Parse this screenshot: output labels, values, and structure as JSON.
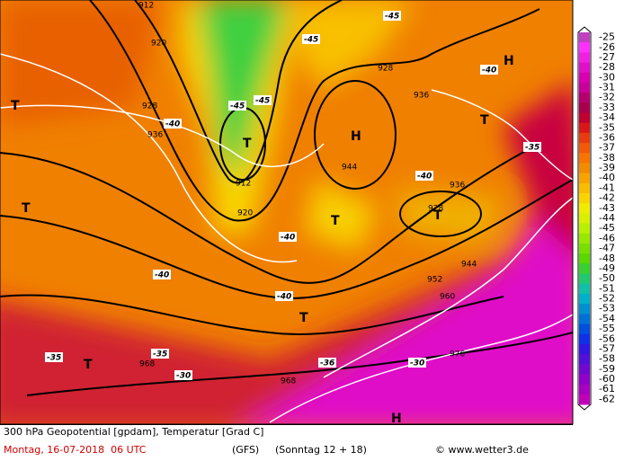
{
  "map": {
    "labels": [
      "H",
      "H",
      "H",
      "T",
      "T",
      "T",
      "T",
      "T",
      "T",
      "T",
      "T",
      "912",
      "912",
      "920",
      "920",
      "928",
      "928",
      "936",
      "936",
      "944",
      "944",
      "952",
      "960",
      "968",
      "968",
      "976",
      "936",
      "928",
      "-40",
      "-40",
      "-40",
      "-40",
      "-40",
      "-40",
      "-45",
      "-45",
      "-45",
      "-45",
      "-35",
      "-35",
      "-35",
      "-36",
      "-30",
      "-30"
    ]
  },
  "legend": {
    "values": [
      -25,
      -26,
      -27,
      -28,
      -30,
      -31,
      -32,
      -33,
      -34,
      -35,
      -36,
      -37,
      -38,
      -39,
      -40,
      -41,
      -42,
      -43,
      -44,
      -45,
      -46,
      -47,
      -48,
      -49,
      -50,
      -51,
      -52,
      -53,
      -54,
      -55,
      -56,
      -57,
      -58,
      -59,
      -60,
      -61,
      -62
    ],
    "colors": [
      "#c040c0",
      "#ff30ff",
      "#f020e0",
      "#e010c8",
      "#d800b0",
      "#c8009a",
      "#b4006e",
      "#a8004c",
      "#c00030",
      "#d81818",
      "#e83c10",
      "#f05a08",
      "#f87400",
      "#f08c00",
      "#f8a400",
      "#f8bc00",
      "#f8d400",
      "#f0ec00",
      "#d8f000",
      "#b8f000",
      "#98e800",
      "#78e000",
      "#58d800",
      "#38d030",
      "#20c870",
      "#10c0a8",
      "#00b0c8",
      "#0090d0",
      "#0070d8",
      "#0050e0",
      "#1030e8",
      "#3018e0",
      "#5010d8",
      "#7008d0",
      "#9000c8",
      "#a800c0",
      "#c000b8"
    ]
  },
  "footer": {
    "line1": "300 hPa Geopotential [gpdam], Temperatur [Grad C]",
    "date": "Montag, 16-07-2018  06 UTC",
    "model": "(GFS)",
    "run": "(Sonntag 12 + 18)",
    "credit": "© www.wetter3.de"
  }
}
